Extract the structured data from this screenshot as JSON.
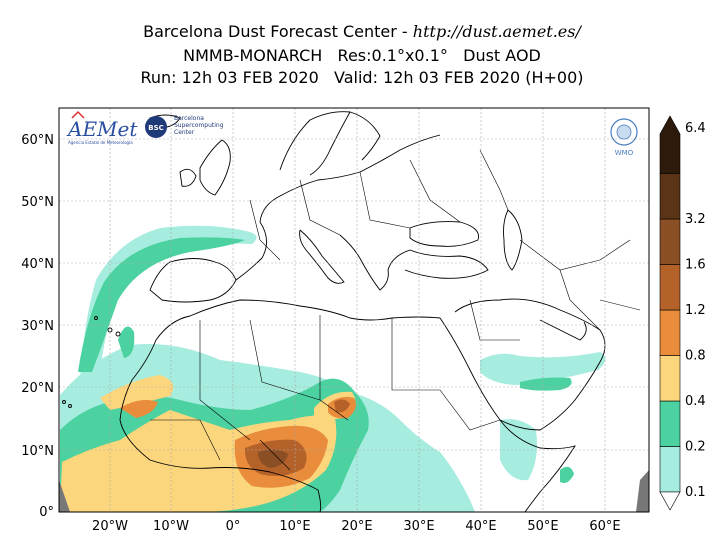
{
  "title": {
    "line1_prefix": "Barcelona Dust Forecast Center - ",
    "line1_url": "http://dust.aemet.es/",
    "line2": "NMMB-MONARCH   Res:0.1°x0.1°   Dust AOD",
    "line3": "Run: 12h 03 FEB 2020   Valid: 12h 03 FEB 2020 (H+00)"
  },
  "map": {
    "lat_labels": [
      "60°N",
      "50°N",
      "40°N",
      "30°N",
      "20°N",
      "10°N",
      "0°"
    ],
    "lon_labels": [
      "20°W",
      "10°W",
      "0°",
      "10°E",
      "20°E",
      "30°E",
      "40°E",
      "50°E",
      "60°E"
    ],
    "extent": {
      "lon_min": -28,
      "lon_max": 67,
      "lat_min": 0,
      "lat_max": 65
    }
  },
  "logos": {
    "aemet": "AEMet",
    "aemet_sub": "Agencia Estatal de Meteorología",
    "bsc": "BSC",
    "bsc_line1": "Barcelona",
    "bsc_line2": "Supercomputing",
    "bsc_line3": "Center",
    "wmo": "WMO"
  },
  "colorbar": {
    "levels": [
      "0.1",
      "0.2",
      "0.4",
      "0.8",
      "1.2",
      "1.6",
      "3.2",
      "6.4"
    ],
    "colors": [
      "#a6ecdf",
      "#4cd2a0",
      "#fcd67c",
      "#e98c3c",
      "#b5622a",
      "#8a4f24",
      "#5b3417",
      "#2e1a0b"
    ]
  }
}
